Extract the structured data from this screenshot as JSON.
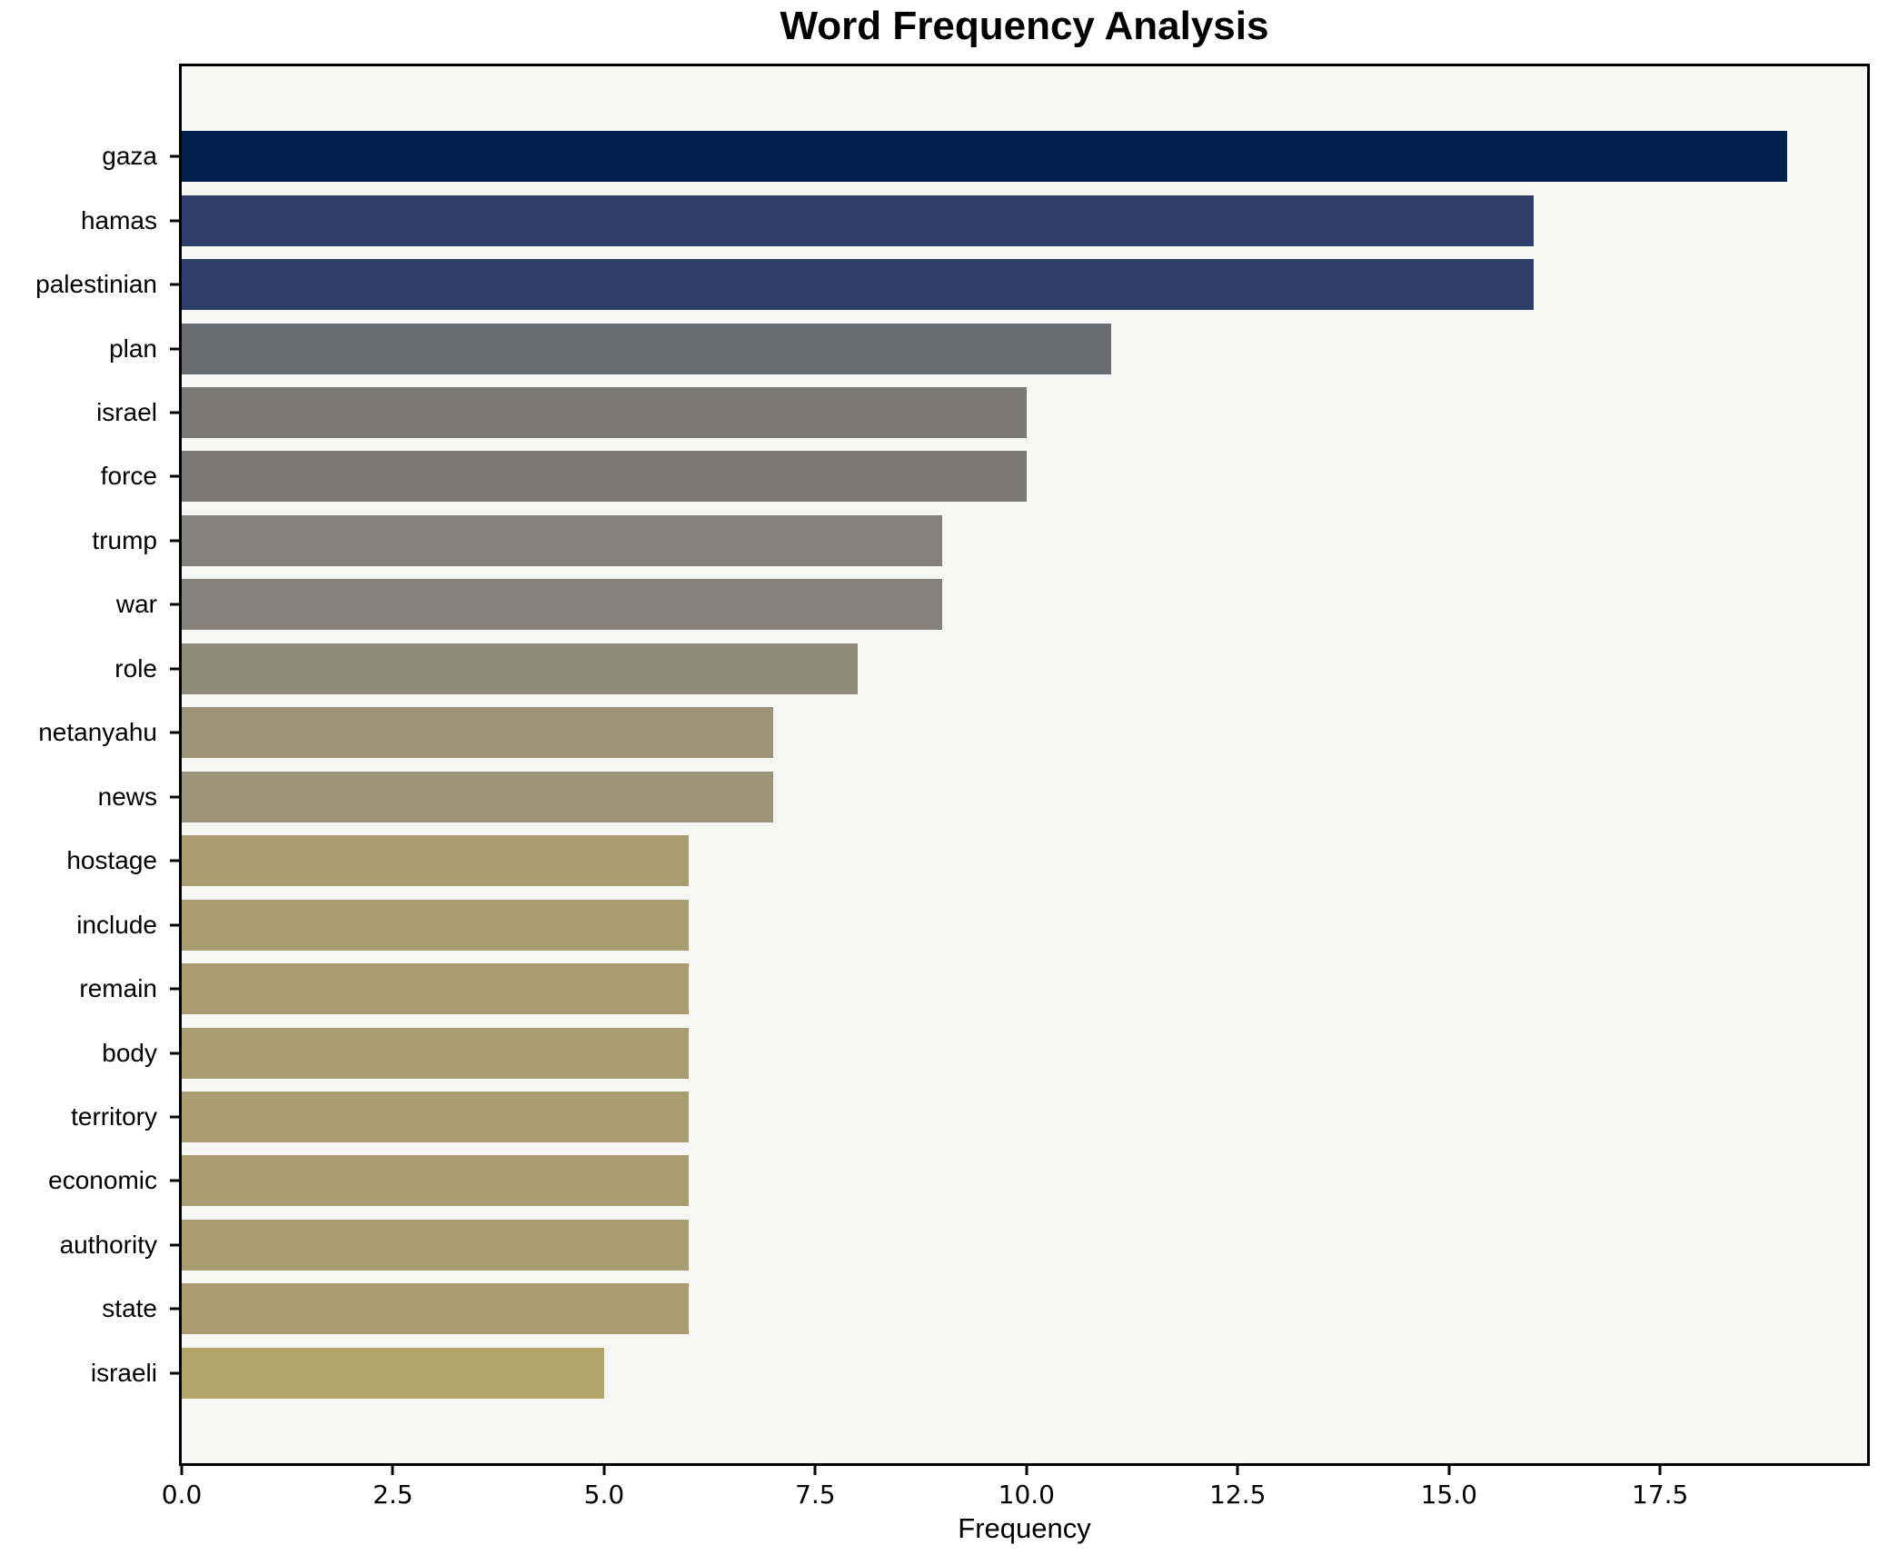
{
  "chart_data": {
    "type": "bar",
    "orientation": "horizontal",
    "title": "Word Frequency Analysis",
    "xlabel": "Frequency",
    "ylabel": "",
    "categories": [
      "gaza",
      "hamas",
      "palestinian",
      "plan",
      "israel",
      "force",
      "trump",
      "war",
      "role",
      "netanyahu",
      "news",
      "hostage",
      "include",
      "remain",
      "body",
      "territory",
      "economic",
      "authority",
      "state",
      "israeli"
    ],
    "values": [
      19,
      16,
      16,
      11,
      10,
      10,
      9,
      9,
      8,
      7,
      7,
      6,
      6,
      6,
      6,
      6,
      6,
      6,
      6,
      5
    ],
    "bar_colors": [
      "#02224e",
      "#2d3f69",
      "#2d3f69",
      "#696c72",
      "#797877",
      "#797877",
      "#84807a",
      "#84807a",
      "#8f8a7a",
      "#9b9478",
      "#9b9478",
      "#a89d70",
      "#a89d70",
      "#a89d70",
      "#a89d70",
      "#a89d70",
      "#a89d70",
      "#a89d70",
      "#a89d70",
      "#b3a76c"
    ],
    "xlim": [
      0,
      19.95
    ],
    "xticks": [
      "0.0",
      "2.5",
      "5.0",
      "7.5",
      "10.0",
      "12.5",
      "15.0",
      "17.5"
    ],
    "xtick_values": [
      0,
      2.5,
      5,
      7.5,
      10,
      12.5,
      15,
      17.5
    ],
    "grid": false,
    "legend_position": "none",
    "plot_background": "#f6f6f5",
    "figure_background": "#ffffff",
    "spine_color": "#000000",
    "text_color": "#000000"
  }
}
